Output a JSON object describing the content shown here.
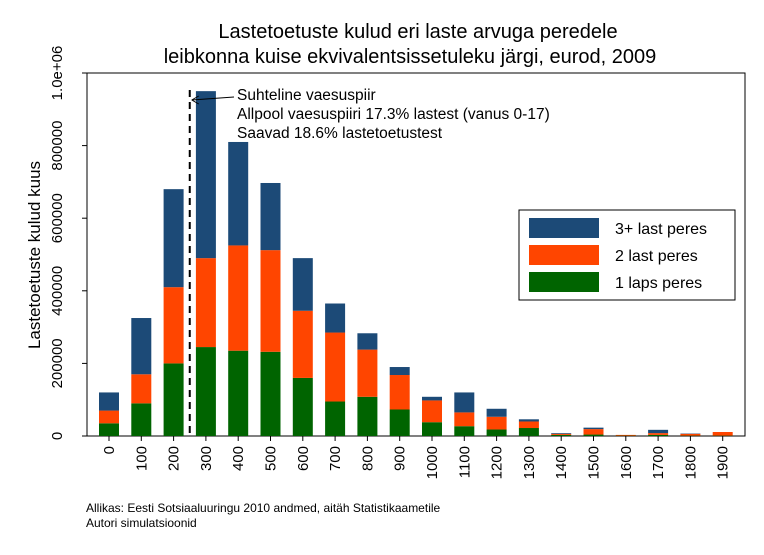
{
  "chart_data": {
    "type": "bar",
    "stacked": true,
    "title": [
      "Lastetoetuste kulud eri laste arvuga peredele",
      "leibkonna kuise ekvivalentsissetuleku järgi, eurod, 2009"
    ],
    "ylabel": "Lastetoetuste kulud kuus",
    "xlabel": "",
    "ylim": [
      0,
      1000000
    ],
    "yticks": [
      0,
      200000,
      400000,
      600000,
      800000,
      1000000
    ],
    "ytick_labels": [
      "0",
      "200000",
      "400000",
      "600000",
      "800000",
      "1.0e+06"
    ],
    "categories": [
      "0",
      "100",
      "200",
      "300",
      "400",
      "500",
      "600",
      "700",
      "800",
      "900",
      "1000",
      "1100",
      "1200",
      "1300",
      "1400",
      "1500",
      "1600",
      "1700",
      "1800",
      "1900"
    ],
    "series": [
      {
        "name": "1 laps peres",
        "color": "#006400",
        "values": [
          35000,
          90000,
          200000,
          245000,
          235000,
          232000,
          160000,
          95000,
          108000,
          73000,
          38000,
          27000,
          18000,
          22000,
          3000,
          4000,
          1000,
          3000,
          1000,
          1000
        ]
      },
      {
        "name": "2 last peres",
        "color": "#ff4500",
        "values": [
          35000,
          80000,
          210000,
          245000,
          290000,
          280000,
          185000,
          190000,
          130000,
          95000,
          60000,
          38000,
          35000,
          18000,
          3000,
          15000,
          2000,
          5000,
          5000,
          10000
        ]
      },
      {
        "name": "3+ last peres",
        "color": "#1c4a77",
        "values": [
          50000,
          155000,
          270000,
          460000,
          285000,
          185000,
          145000,
          80000,
          45000,
          22000,
          10000,
          55000,
          22000,
          6000,
          2000,
          4000,
          0,
          9000,
          1000,
          0
        ]
      }
    ],
    "legend_order": [
      "3+ last peres",
      "2 last peres",
      "1 laps peres"
    ],
    "legend_position": "right",
    "poverty_line_x": 250,
    "annotation": [
      "Suhteline vaesuspiir",
      "Allpool vaesuspiiri 17.3% lastest (vanus 0-17)",
      "Saavad 18.6% lastetoetustest"
    ],
    "grid": false
  },
  "footer": {
    "source": "Allikas: Eesti Sotsiaaluuringu 2010 andmed, aitäh Statistikaametile",
    "author": "Autori simulatsioonid"
  }
}
